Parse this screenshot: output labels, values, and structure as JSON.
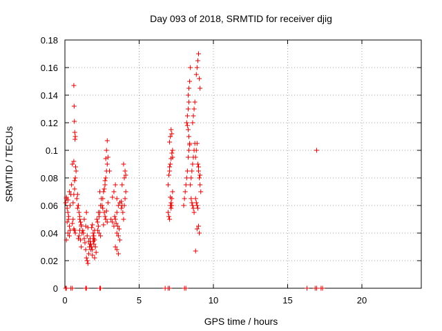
{
  "chart_data": {
    "type": "scatter",
    "title": "Day 093 of 2018, SRMTID for receiver djig",
    "xlabel": "GPS time / hours",
    "ylabel": "SRMTID / TECUs",
    "xlim": [
      0,
      24
    ],
    "ylim": [
      0,
      0.18
    ],
    "x_ticks": [
      0,
      5,
      10,
      15,
      20
    ],
    "x_tick_labels": [
      "0",
      "5",
      "10",
      "15",
      "20"
    ],
    "y_ticks": [
      0,
      0.02,
      0.04,
      0.06,
      0.08,
      0.1,
      0.12,
      0.14,
      0.16,
      0.18
    ],
    "y_tick_labels": [
      "0",
      "0.02",
      "0.04",
      "0.06",
      "0.08",
      "0.1",
      "0.12",
      "0.14",
      "0.16",
      "0.18"
    ],
    "grid": true,
    "legend": "none",
    "marker": "plus",
    "color": "#e00000",
    "series": [
      {
        "x": [
          0.05,
          0.1,
          0.15,
          0.2,
          0.25,
          0.3,
          0.35,
          0.1,
          0.2,
          0.3,
          0.15,
          0.25,
          0.35,
          0.4,
          0.45,
          0.3,
          0.2,
          0.1,
          0.5,
          0.55,
          0.6,
          0.65,
          0.7,
          0.55,
          0.6,
          0.65,
          0.7,
          0.75,
          0.5,
          0.6,
          0.62,
          0.64,
          0.66,
          0.68,
          0.7,
          0.72,
          0.6,
          0.65,
          0.8,
          0.85,
          0.9,
          0.95,
          1.0,
          1.05,
          1.1,
          1.15,
          0.9,
          0.95,
          1.0,
          1.05,
          1.1,
          0.85,
          0.9,
          1.0,
          1.1,
          1.2,
          1.25,
          1.3,
          1.35,
          1.4,
          1.45,
          1.5,
          1.55,
          1.6,
          1.65,
          1.7,
          1.3,
          1.4,
          1.5,
          1.6,
          1.45,
          1.55,
          1.7,
          1.75,
          1.8,
          1.85,
          1.9,
          1.95,
          2.0,
          2.05,
          2.1,
          1.8,
          1.85,
          1.9,
          1.95,
          2.0,
          1.75,
          1.85,
          1.95,
          2.05,
          1.9,
          2.0,
          2.15,
          2.2,
          2.25,
          2.3,
          2.35,
          2.4,
          2.45,
          2.2,
          2.3,
          2.4,
          2.25,
          2.35,
          2.5,
          2.55,
          2.6,
          2.65,
          2.7,
          2.75,
          2.8,
          2.85,
          2.9,
          2.55,
          2.65,
          2.75,
          2.85,
          2.6,
          2.7,
          2.8,
          2.9,
          2.7,
          2.75,
          2.8,
          2.85,
          3.0,
          3.1,
          3.2,
          3.3,
          3.4,
          3.5,
          3.6,
          3.7,
          3.8,
          3.2,
          3.3,
          3.4,
          3.5,
          3.6,
          3.7,
          3.35,
          3.45,
          3.55,
          3.65,
          3.4,
          3.5,
          3.6,
          3.5,
          3.8,
          3.85,
          3.9,
          3.95,
          4.0,
          4.05,
          4.1,
          3.85,
          3.95,
          4.05,
          4.0,
          4.1,
          6.95,
          7.0,
          7.05,
          7.1,
          7.15,
          7.2,
          7.25,
          6.95,
          7.0,
          7.05,
          7.1,
          7.15,
          7.2,
          7.25,
          7.05,
          7.1,
          7.15,
          7.2,
          7.25,
          7.05,
          7.1,
          7.15,
          7.2,
          8.0,
          8.05,
          8.1,
          8.15,
          8.2,
          8.25,
          8.3,
          8.35,
          8.4,
          8.2,
          8.25,
          8.3,
          8.35,
          8.3,
          8.35,
          8.4,
          8.45,
          8.25,
          8.3,
          8.35,
          8.4,
          8.45,
          8.5,
          8.55,
          8.6,
          8.65,
          8.7,
          8.75,
          8.5,
          8.55,
          8.6,
          8.65,
          8.7,
          8.6,
          8.65,
          8.7,
          8.75,
          8.8,
          8.85,
          8.9,
          8.95,
          9.0,
          9.05,
          9.1,
          9.15,
          8.8,
          8.85,
          8.9,
          8.95,
          9.0,
          9.05,
          8.85,
          8.9,
          8.95,
          9.0,
          9.05,
          9.1,
          8.8,
          8.9,
          9.0,
          9.1,
          16.95
        ],
        "y": [
          0.062,
          0.065,
          0.058,
          0.055,
          0.05,
          0.045,
          0.042,
          0.035,
          0.04,
          0.038,
          0.048,
          0.052,
          0.06,
          0.068,
          0.075,
          0.07,
          0.064,
          0.066,
          0.047,
          0.05,
          0.043,
          0.042,
          0.04,
          0.062,
          0.068,
          0.072,
          0.08,
          0.085,
          0.09,
          0.147,
          0.132,
          0.121,
          0.113,
          0.108,
          0.11,
          0.088,
          0.092,
          0.078,
          0.065,
          0.058,
          0.06,
          0.055,
          0.052,
          0.048,
          0.045,
          0.04,
          0.036,
          0.038,
          0.042,
          0.035,
          0.03,
          0.068,
          0.06,
          0.05,
          0.046,
          0.042,
          0.04,
          0.036,
          0.033,
          0.028,
          0.022,
          0.02,
          0.018,
          0.025,
          0.03,
          0.032,
          0.05,
          0.045,
          0.038,
          0.034,
          0.055,
          0.044,
          0.036,
          0.032,
          0.03,
          0.028,
          0.034,
          0.038,
          0.035,
          0.03,
          0.026,
          0.044,
          0.046,
          0.04,
          0.036,
          0.042,
          0.028,
          0.024,
          0.032,
          0.03,
          0.038,
          0.022,
          0.05,
          0.048,
          0.045,
          0.052,
          0.055,
          0.06,
          0.065,
          0.042,
          0.04,
          0.038,
          0.055,
          0.07,
          0.06,
          0.065,
          0.07,
          0.072,
          0.075,
          0.08,
          0.085,
          0.09,
          0.095,
          0.058,
          0.055,
          0.05,
          0.048,
          0.046,
          0.052,
          0.056,
          0.062,
          0.078,
          0.094,
          0.1,
          0.107,
          0.085,
          0.05,
          0.048,
          0.045,
          0.05,
          0.055,
          0.06,
          0.062,
          0.058,
          0.066,
          0.07,
          0.075,
          0.04,
          0.038,
          0.035,
          0.052,
          0.047,
          0.045,
          0.043,
          0.03,
          0.028,
          0.025,
          0.065,
          0.063,
          0.06,
          0.055,
          0.05,
          0.06,
          0.065,
          0.07,
          0.075,
          0.09,
          0.085,
          0.08,
          0.082,
          0.055,
          0.052,
          0.05,
          0.06,
          0.058,
          0.065,
          0.07,
          0.075,
          0.082,
          0.085,
          0.09,
          0.094,
          0.098,
          0.1,
          0.106,
          0.11,
          0.115,
          0.112,
          0.095,
          0.088,
          0.066,
          0.062,
          0.06,
          0.06,
          0.065,
          0.07,
          0.075,
          0.08,
          0.085,
          0.095,
          0.1,
          0.105,
          0.12,
          0.125,
          0.13,
          0.135,
          0.14,
          0.145,
          0.15,
          0.16,
          0.118,
          0.115,
          0.11,
          0.104,
          0.075,
          0.08,
          0.085,
          0.09,
          0.095,
          0.1,
          0.105,
          0.065,
          0.062,
          0.06,
          0.058,
          0.055,
          0.12,
          0.125,
          0.13,
          0.135,
          0.095,
          0.1,
          0.105,
          0.09,
          0.085,
          0.08,
          0.075,
          0.07,
          0.065,
          0.062,
          0.06,
          0.058,
          0.045,
          0.04,
          0.155,
          0.16,
          0.165,
          0.17,
          0.152,
          0.145,
          0.027,
          0.043,
          0.088,
          0.082,
          0.1
        ]
      },
      {
        "x": [
          0.05,
          0.1,
          0.4,
          0.5,
          1.4,
          1.45,
          2.35,
          2.4,
          6.75,
          6.95,
          7.05,
          8.05,
          8.15,
          16.3,
          16.85,
          16.95,
          17.25,
          17.35
        ],
        "y": [
          0,
          0,
          0,
          0,
          0,
          0,
          0,
          0,
          0,
          0,
          0,
          0,
          0,
          0,
          0,
          0,
          0,
          0
        ]
      }
    ]
  }
}
